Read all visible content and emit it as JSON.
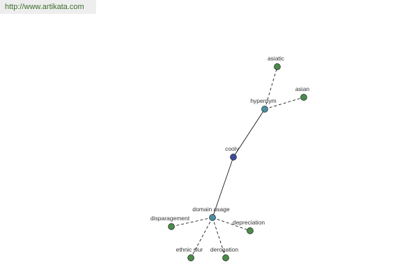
{
  "header": {
    "url": "http://www.artikata.com"
  },
  "nodes": [
    {
      "label": "cooly"
    },
    {
      "label": "hypernym"
    },
    {
      "label": "asiatic"
    },
    {
      "label": "asian"
    },
    {
      "label": "domain usage"
    },
    {
      "label": "disparagement"
    },
    {
      "label": "depreciation"
    },
    {
      "label": "ethnic slur"
    },
    {
      "label": "derogation"
    }
  ]
}
